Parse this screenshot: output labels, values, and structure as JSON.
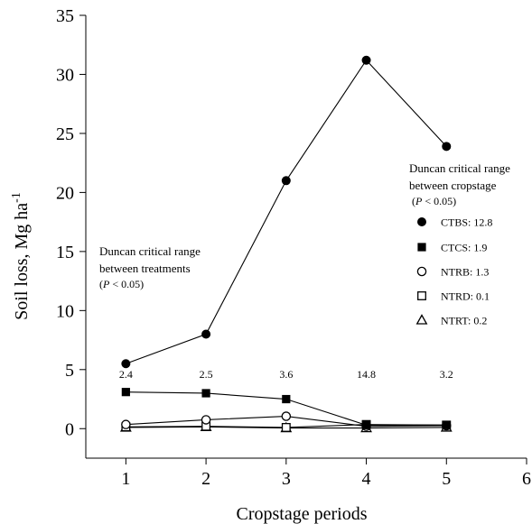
{
  "chart_data": {
    "type": "line",
    "xlabel": "Cropstage periods",
    "ylabel_main": "Soil loss, Mg ha",
    "ylabel_sup": "-1",
    "xlim": [
      0.5,
      6
    ],
    "ylim": [
      -2.5,
      35
    ],
    "xticks": [
      1,
      2,
      3,
      4,
      5,
      6
    ],
    "yticks": [
      0,
      5,
      10,
      15,
      20,
      25,
      30,
      35
    ],
    "x": [
      1,
      2,
      3,
      4,
      5
    ],
    "series": [
      {
        "name": "CTBS",
        "marker": "filled-circle",
        "values": [
          5.5,
          8.0,
          21.0,
          31.2,
          23.9
        ]
      },
      {
        "name": "CTCS",
        "marker": "filled-square",
        "values": [
          3.1,
          3.0,
          2.5,
          0.3,
          0.3
        ]
      },
      {
        "name": "NTRB",
        "marker": "open-circle",
        "values": [
          0.35,
          0.75,
          1.05,
          0.2,
          0.25
        ]
      },
      {
        "name": "NTRD",
        "marker": "open-square",
        "values": [
          0.15,
          0.2,
          0.1,
          0.35,
          0.3
        ]
      },
      {
        "name": "NTRT",
        "marker": "open-triangle",
        "values": [
          0.1,
          0.15,
          0.05,
          0.05,
          0.1
        ]
      }
    ],
    "treatment_ranges": [
      {
        "x": 1,
        "label": "2.4"
      },
      {
        "x": 2,
        "label": "2.5"
      },
      {
        "x": 3,
        "label": "3.6"
      },
      {
        "x": 4,
        "label": "14.8"
      },
      {
        "x": 5,
        "label": "3.2"
      }
    ],
    "annotation_treatments": {
      "line1": "Duncan critical range",
      "line2": "between treatments",
      "p_open": "(",
      "p_var": "P",
      "p_rest": " < 0.05)"
    },
    "annotation_cropstage": {
      "line1": "Duncan critical range",
      "line2": "between cropstage",
      "p_open": "(",
      "p_var": "P",
      "p_rest": " < 0.05)"
    },
    "legend": [
      {
        "series": "CTBS",
        "label": "CTBS: 12.8"
      },
      {
        "series": "CTCS",
        "label": "CTCS: 1.9"
      },
      {
        "series": "NTRB",
        "label": "NTRB: 1.3"
      },
      {
        "series": "NTRD",
        "label": "NTRD: 0.1"
      },
      {
        "series": "NTRT",
        "label": "NTRT: 0.2"
      }
    ]
  }
}
